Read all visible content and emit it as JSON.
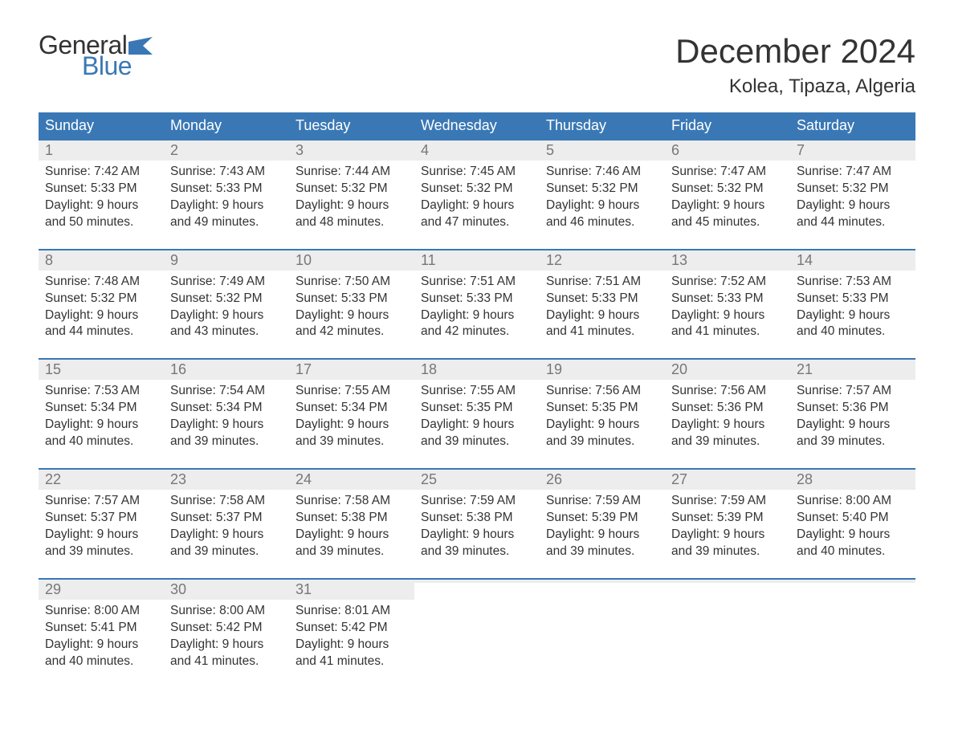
{
  "logo": {
    "word1": "General",
    "word2": "Blue",
    "text_color": "#333333",
    "accent_color": "#3a78b5"
  },
  "title": "December 2024",
  "location": "Kolea, Tipaza, Algeria",
  "colors": {
    "header_bg": "#3a78b5",
    "header_text": "#ffffff",
    "rule": "#3a78b5",
    "daynum_bg": "#ededed",
    "daynum_text": "#777777",
    "body_text": "#333333",
    "background": "#ffffff"
  },
  "fonts": {
    "title_size": 42,
    "location_size": 24,
    "dow_size": 18,
    "body_size": 15.5
  },
  "days_of_week": [
    "Sunday",
    "Monday",
    "Tuesday",
    "Wednesday",
    "Thursday",
    "Friday",
    "Saturday"
  ],
  "weeks": [
    [
      {
        "n": "1",
        "sunrise": "Sunrise: 7:42 AM",
        "sunset": "Sunset: 5:33 PM",
        "d1": "Daylight: 9 hours",
        "d2": "and 50 minutes."
      },
      {
        "n": "2",
        "sunrise": "Sunrise: 7:43 AM",
        "sunset": "Sunset: 5:33 PM",
        "d1": "Daylight: 9 hours",
        "d2": "and 49 minutes."
      },
      {
        "n": "3",
        "sunrise": "Sunrise: 7:44 AM",
        "sunset": "Sunset: 5:32 PM",
        "d1": "Daylight: 9 hours",
        "d2": "and 48 minutes."
      },
      {
        "n": "4",
        "sunrise": "Sunrise: 7:45 AM",
        "sunset": "Sunset: 5:32 PM",
        "d1": "Daylight: 9 hours",
        "d2": "and 47 minutes."
      },
      {
        "n": "5",
        "sunrise": "Sunrise: 7:46 AM",
        "sunset": "Sunset: 5:32 PM",
        "d1": "Daylight: 9 hours",
        "d2": "and 46 minutes."
      },
      {
        "n": "6",
        "sunrise": "Sunrise: 7:47 AM",
        "sunset": "Sunset: 5:32 PM",
        "d1": "Daylight: 9 hours",
        "d2": "and 45 minutes."
      },
      {
        "n": "7",
        "sunrise": "Sunrise: 7:47 AM",
        "sunset": "Sunset: 5:32 PM",
        "d1": "Daylight: 9 hours",
        "d2": "and 44 minutes."
      }
    ],
    [
      {
        "n": "8",
        "sunrise": "Sunrise: 7:48 AM",
        "sunset": "Sunset: 5:32 PM",
        "d1": "Daylight: 9 hours",
        "d2": "and 44 minutes."
      },
      {
        "n": "9",
        "sunrise": "Sunrise: 7:49 AM",
        "sunset": "Sunset: 5:32 PM",
        "d1": "Daylight: 9 hours",
        "d2": "and 43 minutes."
      },
      {
        "n": "10",
        "sunrise": "Sunrise: 7:50 AM",
        "sunset": "Sunset: 5:33 PM",
        "d1": "Daylight: 9 hours",
        "d2": "and 42 minutes."
      },
      {
        "n": "11",
        "sunrise": "Sunrise: 7:51 AM",
        "sunset": "Sunset: 5:33 PM",
        "d1": "Daylight: 9 hours",
        "d2": "and 42 minutes."
      },
      {
        "n": "12",
        "sunrise": "Sunrise: 7:51 AM",
        "sunset": "Sunset: 5:33 PM",
        "d1": "Daylight: 9 hours",
        "d2": "and 41 minutes."
      },
      {
        "n": "13",
        "sunrise": "Sunrise: 7:52 AM",
        "sunset": "Sunset: 5:33 PM",
        "d1": "Daylight: 9 hours",
        "d2": "and 41 minutes."
      },
      {
        "n": "14",
        "sunrise": "Sunrise: 7:53 AM",
        "sunset": "Sunset: 5:33 PM",
        "d1": "Daylight: 9 hours",
        "d2": "and 40 minutes."
      }
    ],
    [
      {
        "n": "15",
        "sunrise": "Sunrise: 7:53 AM",
        "sunset": "Sunset: 5:34 PM",
        "d1": "Daylight: 9 hours",
        "d2": "and 40 minutes."
      },
      {
        "n": "16",
        "sunrise": "Sunrise: 7:54 AM",
        "sunset": "Sunset: 5:34 PM",
        "d1": "Daylight: 9 hours",
        "d2": "and 39 minutes."
      },
      {
        "n": "17",
        "sunrise": "Sunrise: 7:55 AM",
        "sunset": "Sunset: 5:34 PM",
        "d1": "Daylight: 9 hours",
        "d2": "and 39 minutes."
      },
      {
        "n": "18",
        "sunrise": "Sunrise: 7:55 AM",
        "sunset": "Sunset: 5:35 PM",
        "d1": "Daylight: 9 hours",
        "d2": "and 39 minutes."
      },
      {
        "n": "19",
        "sunrise": "Sunrise: 7:56 AM",
        "sunset": "Sunset: 5:35 PM",
        "d1": "Daylight: 9 hours",
        "d2": "and 39 minutes."
      },
      {
        "n": "20",
        "sunrise": "Sunrise: 7:56 AM",
        "sunset": "Sunset: 5:36 PM",
        "d1": "Daylight: 9 hours",
        "d2": "and 39 minutes."
      },
      {
        "n": "21",
        "sunrise": "Sunrise: 7:57 AM",
        "sunset": "Sunset: 5:36 PM",
        "d1": "Daylight: 9 hours",
        "d2": "and 39 minutes."
      }
    ],
    [
      {
        "n": "22",
        "sunrise": "Sunrise: 7:57 AM",
        "sunset": "Sunset: 5:37 PM",
        "d1": "Daylight: 9 hours",
        "d2": "and 39 minutes."
      },
      {
        "n": "23",
        "sunrise": "Sunrise: 7:58 AM",
        "sunset": "Sunset: 5:37 PM",
        "d1": "Daylight: 9 hours",
        "d2": "and 39 minutes."
      },
      {
        "n": "24",
        "sunrise": "Sunrise: 7:58 AM",
        "sunset": "Sunset: 5:38 PM",
        "d1": "Daylight: 9 hours",
        "d2": "and 39 minutes."
      },
      {
        "n": "25",
        "sunrise": "Sunrise: 7:59 AM",
        "sunset": "Sunset: 5:38 PM",
        "d1": "Daylight: 9 hours",
        "d2": "and 39 minutes."
      },
      {
        "n": "26",
        "sunrise": "Sunrise: 7:59 AM",
        "sunset": "Sunset: 5:39 PM",
        "d1": "Daylight: 9 hours",
        "d2": "and 39 minutes."
      },
      {
        "n": "27",
        "sunrise": "Sunrise: 7:59 AM",
        "sunset": "Sunset: 5:39 PM",
        "d1": "Daylight: 9 hours",
        "d2": "and 39 minutes."
      },
      {
        "n": "28",
        "sunrise": "Sunrise: 8:00 AM",
        "sunset": "Sunset: 5:40 PM",
        "d1": "Daylight: 9 hours",
        "d2": "and 40 minutes."
      }
    ],
    [
      {
        "n": "29",
        "sunrise": "Sunrise: 8:00 AM",
        "sunset": "Sunset: 5:41 PM",
        "d1": "Daylight: 9 hours",
        "d2": "and 40 minutes."
      },
      {
        "n": "30",
        "sunrise": "Sunrise: 8:00 AM",
        "sunset": "Sunset: 5:42 PM",
        "d1": "Daylight: 9 hours",
        "d2": "and 41 minutes."
      },
      {
        "n": "31",
        "sunrise": "Sunrise: 8:01 AM",
        "sunset": "Sunset: 5:42 PM",
        "d1": "Daylight: 9 hours",
        "d2": "and 41 minutes."
      },
      {
        "empty": true
      },
      {
        "empty": true
      },
      {
        "empty": true
      },
      {
        "empty": true
      }
    ]
  ]
}
